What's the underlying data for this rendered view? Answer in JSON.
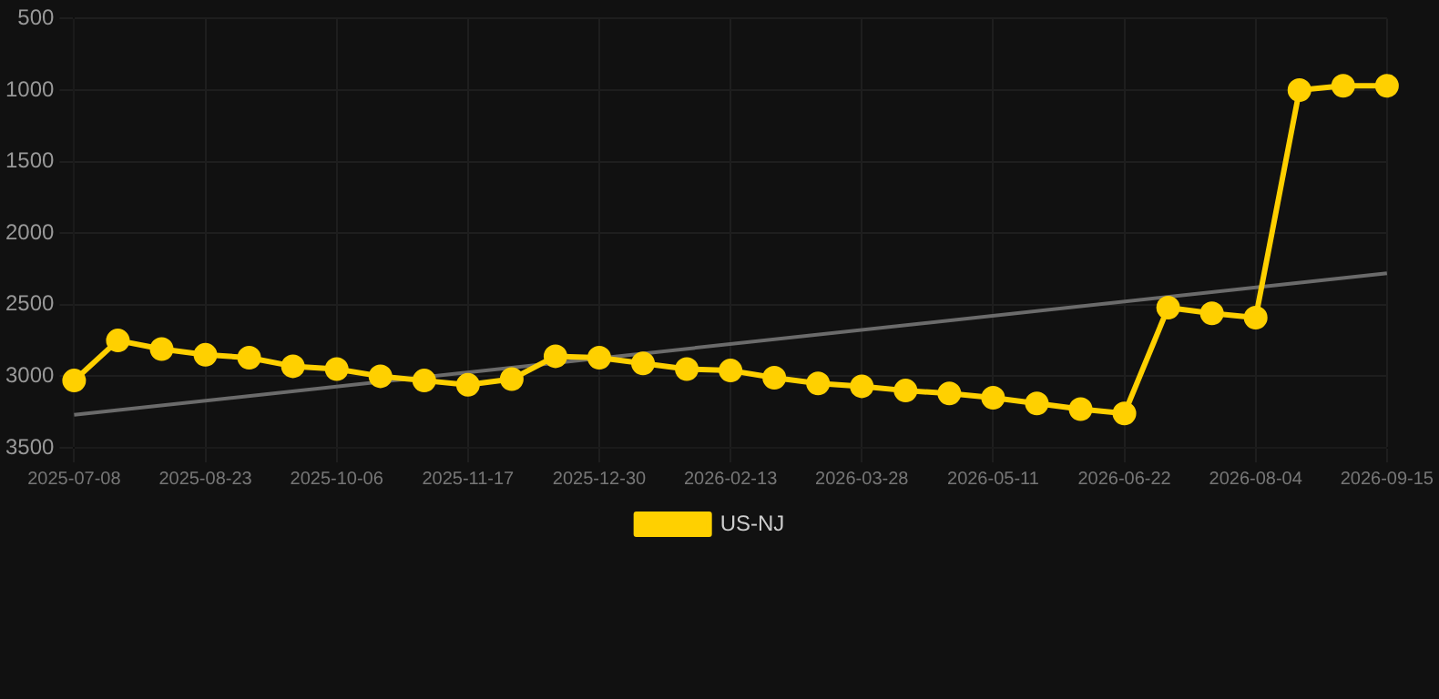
{
  "chart_data": {
    "type": "line",
    "categories": [
      "2025-07-08",
      null,
      null,
      "2025-08-23",
      null,
      null,
      "2025-10-06",
      null,
      null,
      "2025-11-17",
      null,
      null,
      "2025-12-30",
      null,
      null,
      "2026-02-13",
      null,
      null,
      "2026-03-28",
      null,
      null,
      "2026-05-11",
      null,
      null,
      "2026-06-22",
      null,
      null,
      "2026-08-04",
      null,
      null,
      "2026-09-15"
    ],
    "series": [
      {
        "name": "US-NJ",
        "color": "#ffd000",
        "values": [
          3030,
          2750,
          2810,
          2850,
          2870,
          2930,
          2950,
          3000,
          3030,
          3060,
          3020,
          2860,
          2870,
          2910,
          2950,
          2960,
          3010,
          3050,
          3070,
          3100,
          3120,
          3150,
          3190,
          3230,
          3260,
          2520,
          2560,
          2590,
          1000,
          970,
          970
        ]
      },
      {
        "type": "line",
        "color": "#6b6b6b",
        "marker": "none",
        "values": [
          3270,
          null,
          null,
          null,
          null,
          null,
          null,
          null,
          null,
          null,
          null,
          null,
          null,
          null,
          null,
          null,
          null,
          null,
          null,
          null,
          null,
          null,
          null,
          null,
          null,
          null,
          null,
          null,
          null,
          null,
          2280
        ]
      }
    ],
    "ylim": [
      3500,
      500
    ],
    "yticks": [
      500,
      1000,
      1500,
      2000,
      2500,
      3000,
      3500
    ],
    "grid": true,
    "legend": "bottom",
    "marker": "circle",
    "line_style": "solid"
  }
}
